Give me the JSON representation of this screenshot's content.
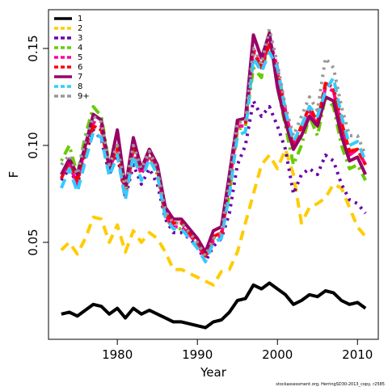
{
  "chart_data": {
    "type": "line",
    "xlabel": "Year",
    "ylabel": "F",
    "footnote": "stockassessment.org, HerringSD30-2013_copy, r2585",
    "x": [
      1973,
      1974,
      1975,
      1976,
      1977,
      1978,
      1979,
      1980,
      1981,
      1982,
      1983,
      1984,
      1985,
      1986,
      1987,
      1988,
      1989,
      1990,
      1991,
      1992,
      1993,
      1994,
      1995,
      1996,
      1997,
      1998,
      1999,
      2000,
      2001,
      2002,
      2003,
      2004,
      2005,
      2006,
      2007,
      2008,
      2009,
      2010,
      2011
    ],
    "xlim": [
      1971.4,
      2012.6
    ],
    "xticks": [
      1980,
      1990,
      2000,
      2010
    ],
    "ylim": [
      0,
      0.17
    ],
    "yticks": [
      0.05,
      {
        "value": 0.1,
        "label": "0.10"
      },
      0.15
    ],
    "legend": "upper left",
    "series": [
      {
        "name": "1",
        "color": "#000000",
        "linestyle": "solid",
        "values": [
          0.013,
          0.014,
          0.012,
          0.015,
          0.018,
          0.017,
          0.013,
          0.016,
          0.011,
          0.016,
          0.013,
          0.015,
          0.013,
          0.011,
          0.009,
          0.009,
          0.008,
          0.007,
          0.006,
          0.009,
          0.01,
          0.014,
          0.02,
          0.021,
          0.028,
          0.026,
          0.029,
          0.026,
          0.023,
          0.018,
          0.02,
          0.023,
          0.022,
          0.025,
          0.024,
          0.02,
          0.018,
          0.019,
          0.016
        ]
      },
      {
        "name": "2",
        "color": "#ffcc00",
        "linestyle": "dashed",
        "values": [
          0.046,
          0.05,
          0.044,
          0.052,
          0.063,
          0.062,
          0.05,
          0.059,
          0.045,
          0.056,
          0.05,
          0.055,
          0.052,
          0.045,
          0.036,
          0.036,
          0.034,
          0.032,
          0.03,
          0.028,
          0.035,
          0.036,
          0.045,
          0.06,
          0.075,
          0.09,
          0.095,
          0.088,
          0.098,
          0.085,
          0.06,
          0.068,
          0.07,
          0.073,
          0.08,
          0.078,
          0.068,
          0.058,
          0.053
        ]
      },
      {
        "name": "3",
        "color": "#6a00a8",
        "linestyle": "dotted",
        "values": [
          0.082,
          0.088,
          0.08,
          0.095,
          0.108,
          0.103,
          0.085,
          0.095,
          0.073,
          0.09,
          0.08,
          0.088,
          0.08,
          0.062,
          0.055,
          0.055,
          0.052,
          0.048,
          0.04,
          0.048,
          0.052,
          0.065,
          0.09,
          0.1,
          0.123,
          0.115,
          0.12,
          0.11,
          0.098,
          0.075,
          0.085,
          0.088,
          0.085,
          0.095,
          0.092,
          0.08,
          0.072,
          0.07,
          0.065
        ]
      },
      {
        "name": "4",
        "color": "#66cc00",
        "linestyle": "dotdash",
        "values": [
          0.092,
          0.1,
          0.085,
          0.105,
          0.12,
          0.115,
          0.09,
          0.1,
          0.075,
          0.095,
          0.085,
          0.095,
          0.085,
          0.063,
          0.057,
          0.057,
          0.054,
          0.05,
          0.043,
          0.052,
          0.055,
          0.075,
          0.108,
          0.11,
          0.14,
          0.135,
          0.158,
          0.13,
          0.11,
          0.09,
          0.1,
          0.115,
          0.105,
          0.125,
          0.12,
          0.1,
          0.088,
          0.09,
          0.082
        ]
      },
      {
        "name": "5",
        "color": "#ff0099",
        "linestyle": "longdash",
        "values": [
          0.085,
          0.09,
          0.08,
          0.1,
          0.112,
          0.11,
          0.088,
          0.098,
          0.074,
          0.098,
          0.085,
          0.095,
          0.088,
          0.064,
          0.058,
          0.058,
          0.054,
          0.049,
          0.042,
          0.051,
          0.053,
          0.08,
          0.11,
          0.11,
          0.15,
          0.14,
          0.155,
          0.14,
          0.118,
          0.1,
          0.108,
          0.118,
          0.11,
          0.13,
          0.128,
          0.11,
          0.095,
          0.098,
          0.09
        ]
      },
      {
        "name": "6",
        "color": "#ff0000",
        "linestyle": "twodash",
        "values": [
          0.083,
          0.092,
          0.082,
          0.098,
          0.11,
          0.108,
          0.088,
          0.098,
          0.076,
          0.1,
          0.088,
          0.098,
          0.088,
          0.065,
          0.06,
          0.06,
          0.055,
          0.05,
          0.043,
          0.053,
          0.055,
          0.082,
          0.112,
          0.112,
          0.148,
          0.14,
          0.152,
          0.138,
          0.115,
          0.1,
          0.11,
          0.12,
          0.112,
          0.132,
          0.13,
          0.112,
          0.097,
          0.098,
          0.09
        ]
      },
      {
        "name": "7",
        "color": "#990066",
        "linestyle": "solid",
        "values": [
          0.085,
          0.093,
          0.085,
          0.1,
          0.116,
          0.113,
          0.088,
          0.108,
          0.078,
          0.104,
          0.088,
          0.098,
          0.09,
          0.068,
          0.062,
          0.062,
          0.057,
          0.052,
          0.045,
          0.056,
          0.058,
          0.085,
          0.113,
          0.114,
          0.157,
          0.145,
          0.158,
          0.13,
          0.112,
          0.098,
          0.105,
          0.115,
          0.11,
          0.125,
          0.123,
          0.105,
          0.092,
          0.094,
          0.085
        ]
      },
      {
        "name": "8",
        "color": "#33ccff",
        "linestyle": "dashed",
        "values": [
          0.078,
          0.088,
          0.076,
          0.092,
          0.107,
          0.104,
          0.084,
          0.095,
          0.072,
          0.095,
          0.082,
          0.093,
          0.085,
          0.063,
          0.057,
          0.057,
          0.052,
          0.047,
          0.04,
          0.05,
          0.052,
          0.075,
          0.105,
          0.107,
          0.145,
          0.138,
          0.148,
          0.14,
          0.118,
          0.102,
          0.11,
          0.12,
          0.115,
          0.128,
          0.135,
          0.115,
          0.1,
          0.102,
          0.092
        ]
      },
      {
        "name": "9+",
        "color": "#999999",
        "linestyle": "dotted",
        "values": [
          0.09,
          0.095,
          0.085,
          0.103,
          0.115,
          0.112,
          0.09,
          0.1,
          0.078,
          0.1,
          0.088,
          0.097,
          0.088,
          0.066,
          0.06,
          0.06,
          0.055,
          0.05,
          0.043,
          0.052,
          0.055,
          0.082,
          0.112,
          0.112,
          0.15,
          0.142,
          0.16,
          0.142,
          0.12,
          0.105,
          0.115,
          0.125,
          0.118,
          0.145,
          0.14,
          0.12,
          0.105,
          0.105,
          0.095
        ]
      }
    ]
  }
}
